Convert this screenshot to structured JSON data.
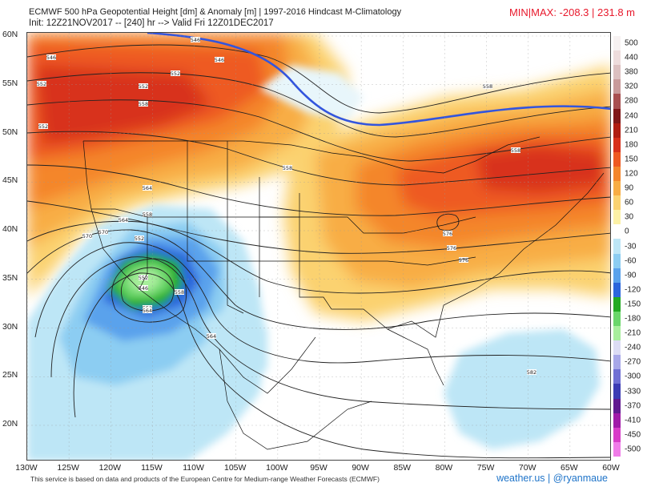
{
  "header": {
    "title": "ECMWF 500 hPa Geopotential Height [dm] & Anomaly [m] | 1997-2016 Hindcast M-Climatology",
    "subtitle": "Init: 12Z21NOV2017 -- [240] hr --> Valid Fri 12Z01DEC2017",
    "minmax": "MIN|MAX: -208.3 | 231.8 m"
  },
  "map": {
    "lat_labels": [
      "60N",
      "55N",
      "50N",
      "45N",
      "40N",
      "35N",
      "30N",
      "25N",
      "20N"
    ],
    "lon_labels": [
      "130W",
      "125W",
      "120W",
      "115W",
      "110W",
      "105W",
      "100W",
      "95W",
      "90W",
      "85W",
      "80W",
      "75W",
      "70W",
      "65W",
      "60W"
    ],
    "lat_range": [
      15,
      60
    ],
    "lon_range": [
      -130,
      -60
    ],
    "contour_labels": [
      "546",
      "546",
      "546",
      "552",
      "552",
      "558",
      "552",
      "552",
      "558",
      "558",
      "564",
      "558",
      "564",
      "570",
      "558",
      "552",
      "552",
      "552",
      "546",
      "564",
      "570",
      "576",
      "576",
      "576",
      "582",
      "558",
      "564"
    ],
    "thick_contour_color": "#3355dd"
  },
  "colorbar": {
    "levels": [
      "500",
      "440",
      "380",
      "320",
      "280",
      "240",
      "210",
      "180",
      "150",
      "120",
      "90",
      "60",
      "30",
      "0",
      "-30",
      "-60",
      "-90",
      "-120",
      "-150",
      "-180",
      "-210",
      "-240",
      "-270",
      "-300",
      "-330",
      "-370",
      "-410",
      "-450",
      "-500"
    ],
    "colors": [
      "#f7f2f2",
      "#eedcdc",
      "#dcc0c0",
      "#c89a9a",
      "#a85050",
      "#801818",
      "#b01e12",
      "#d8301a",
      "#ee5a22",
      "#f4862c",
      "#f8ad44",
      "#fbd270",
      "#fcf1a6",
      "#ffffff",
      "#bde6f6",
      "#8ccdf2",
      "#5aa2ec",
      "#2c66dc",
      "#22aa22",
      "#6ad66a",
      "#a8ee9c",
      "#dcdcf4",
      "#a8a8e8",
      "#7070d4",
      "#3c3cb4",
      "#601a90",
      "#a01aa8",
      "#d83cc8",
      "#f07ce8"
    ]
  },
  "footer": {
    "left": "This service is based on data and products of the European Centre for Medium-range Weather Forecasts (ECMWF)",
    "right": "weather.us | @ryanmaue"
  }
}
